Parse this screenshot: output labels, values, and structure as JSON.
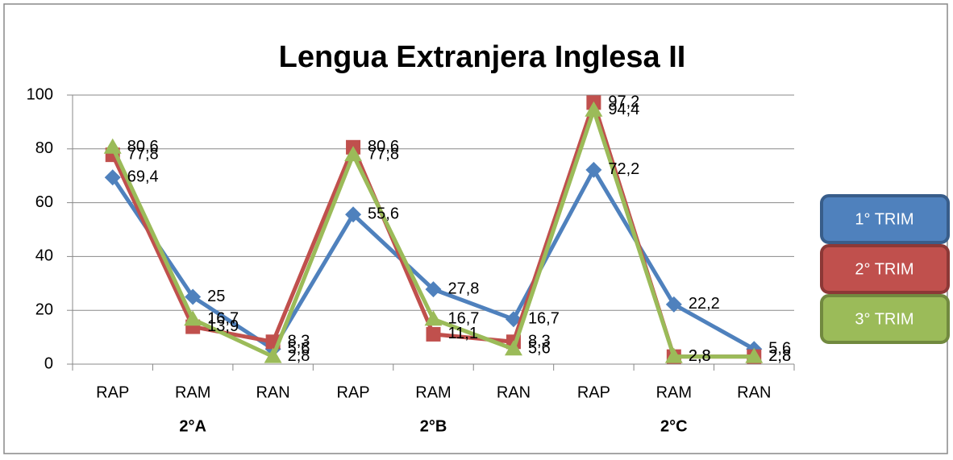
{
  "chart_data": {
    "type": "line",
    "title": "Lengua Extranjera Inglesa II",
    "categories": [
      "RAP",
      "RAM",
      "RAN",
      "RAP",
      "RAM",
      "RAN",
      "RAP",
      "RAM",
      "RAN"
    ],
    "groups": [
      "2°A",
      "2°B",
      "2°C"
    ],
    "ylim": [
      0,
      100
    ],
    "yticks": [
      0,
      20,
      40,
      60,
      80,
      100
    ],
    "grid": true,
    "legend": "right",
    "series": [
      {
        "name": "1° TRIM",
        "color": "#4f81bd",
        "marker": "diamond",
        "values": [
          69.4,
          25,
          5.6,
          55.6,
          27.8,
          16.7,
          72.2,
          22.2,
          5.6
        ],
        "value_labels": [
          "69,4",
          "25",
          "5,6",
          "55,6",
          "27,8",
          "16,7",
          "72,2",
          "22,2",
          "5,6"
        ]
      },
      {
        "name": "2° TRIM",
        "color": "#c0504d",
        "marker": "square",
        "values": [
          77.8,
          13.9,
          8.3,
          80.6,
          11.1,
          8.3,
          97.2,
          2.8,
          2.8
        ],
        "value_labels": [
          "77,8",
          "13,9",
          "8,3",
          "80,6",
          "11,1",
          "8,3",
          "97,2",
          "2,8",
          "2,8"
        ]
      },
      {
        "name": "3° TRIM",
        "color": "#9bbb59",
        "marker": "triangle",
        "values": [
          80.6,
          16.7,
          2.8,
          77.8,
          16.7,
          5.6,
          94.4,
          2.8,
          2.8
        ],
        "value_labels": [
          "80,6",
          "16,7",
          "2,8",
          "77,8",
          "16,7",
          "5,6",
          "94,4",
          "2,8",
          "2,8"
        ]
      }
    ]
  }
}
